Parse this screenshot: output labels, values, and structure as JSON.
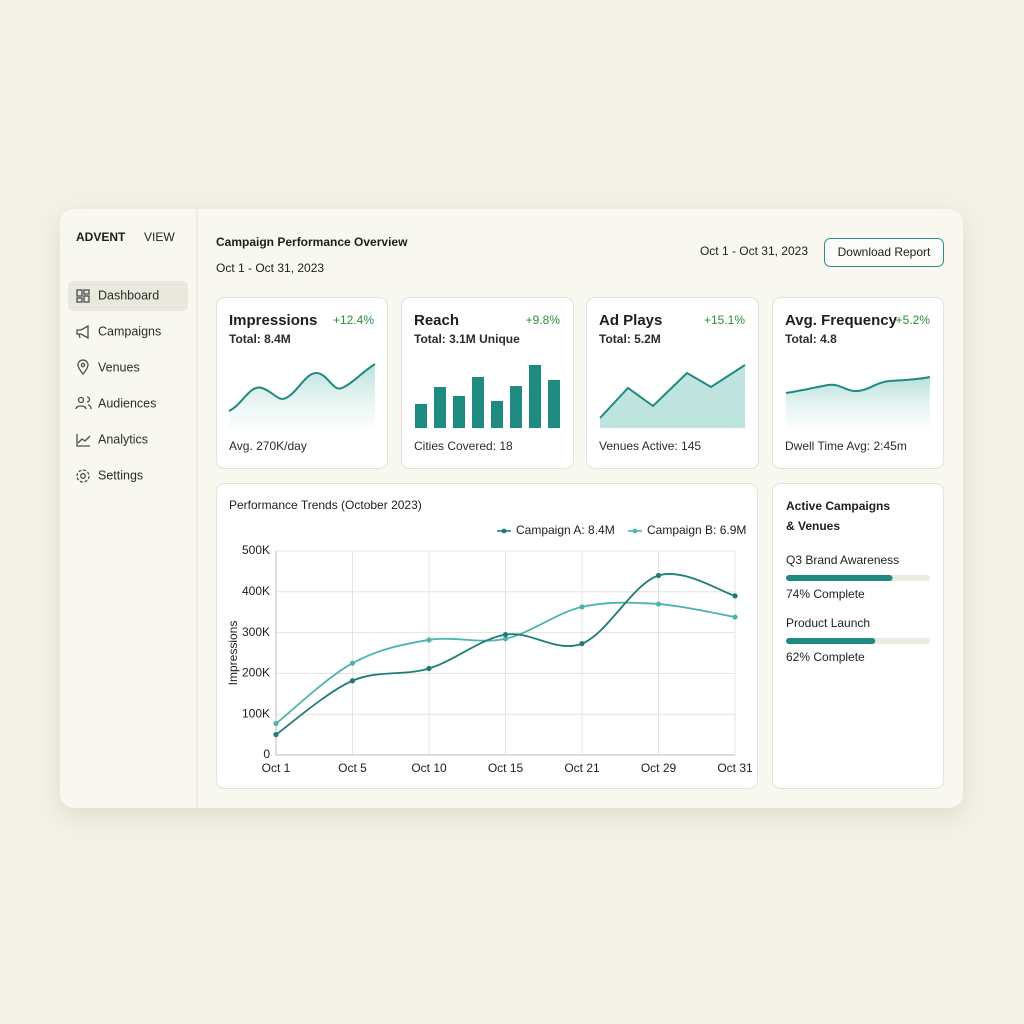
{
  "sidebar": {
    "brand_strong": "ADVENT",
    "brand_light": "VIEW",
    "nav": [
      "Dashboard",
      "Campaigns",
      "Venues",
      "Audiences",
      "Analytics",
      "Settings"
    ]
  },
  "header": {
    "title": "Campaign Performance Overview",
    "subtitle": "Oct 1 - Oct 31, 2023",
    "date_range": "Oct 1 - Oct 31, 2023",
    "button": "Download Report"
  },
  "kpis": [
    {
      "title": "Impressions",
      "change": "+12.4%",
      "total": "Total: 8.4M",
      "footer": "Avg. 270K/day"
    },
    {
      "title": "Reach",
      "change": "+9.8%",
      "total": "Total: 3.1M Unique",
      "footer": "Cities Covered: 18"
    },
    {
      "title": "Ad Plays",
      "change": "+15.1%",
      "total": "Total: 5.2M",
      "footer": "Venues Active: 145"
    },
    {
      "title": "Avg. Frequency",
      "change": "+5.2%",
      "total": "Total: 4.8",
      "footer": "Dwell Time Avg: 2:45m"
    }
  ],
  "trend_chart": {
    "type": "line",
    "title": "Performance Trends (October 2023)",
    "y_label": "Impressions",
    "categories": [
      "Oct 1",
      "Oct 5",
      "Oct 10",
      "Oct 15",
      "Oct 21",
      "Oct 29",
      "Oct 31"
    ],
    "series": [
      {
        "name": "Campaign A: 8.4M",
        "color": "#1f7d75",
        "values": [
          50000,
          182000,
          212000,
          295000,
          273000,
          440000,
          390000
        ]
      },
      {
        "name": "Campaign B: 6.9M",
        "color": "#4db5ab",
        "values": [
          77000,
          225000,
          282000,
          285000,
          363000,
          370000,
          338000
        ]
      }
    ],
    "ylim": [
      0,
      500000
    ],
    "yticks": [
      0,
      {
        "value": 100000,
        "label": "100K"
      },
      {
        "value": 200000,
        "label": "200K"
      },
      {
        "value": 300000,
        "label": "300K"
      },
      {
        "value": 400000,
        "label": "400K"
      },
      {
        "value": 500000,
        "label": "500K"
      }
    ],
    "grid": true
  },
  "active": {
    "title_line1": "Active Campaigns",
    "title_line2": "& Venues",
    "items": [
      {
        "name": "Q3 Brand Awareness",
        "progress": 74,
        "label": "74% Complete"
      },
      {
        "name": "Product Launch",
        "progress": 62,
        "label": "62% Complete"
      }
    ]
  }
}
